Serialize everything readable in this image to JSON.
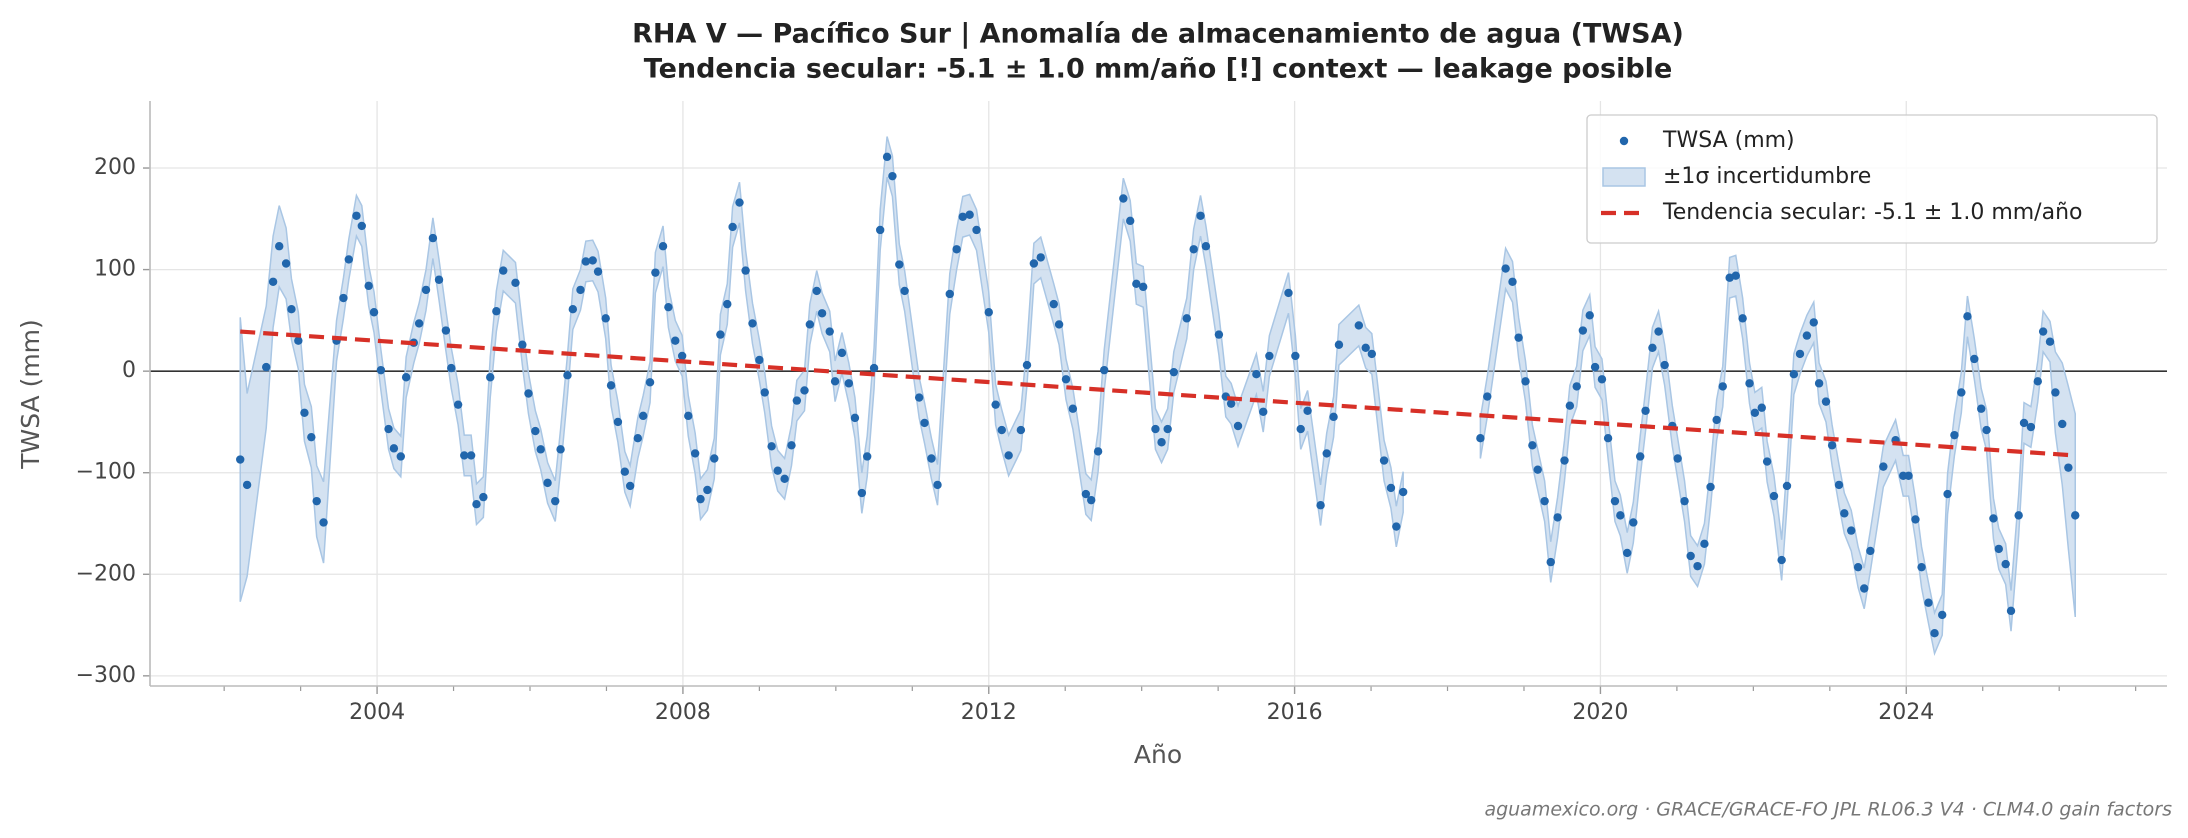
{
  "chart_data": {
    "type": "scatter",
    "title": "RHA V — Pacífico Sur  |  Anomalía de almacenamiento de agua (TWSA)",
    "subtitle": "Tendencia secular: -5.1 ± 1.0 mm/año  [!] context — leakage posible",
    "xlabel": "Año",
    "ylabel": "TWSA (mm)",
    "source": "aguamexico.org · GRACE/GRACE-FO JPL RL06.3 V4 · CLM4.0 gain factors",
    "xlim": [
      2001.03,
      2027.41
    ],
    "ylim": [
      -310,
      266
    ],
    "xticks": [
      2004,
      2008,
      2012,
      2016,
      2020,
      2024
    ],
    "xminorticks": [
      2002,
      2003,
      2005,
      2006,
      2007,
      2009,
      2010,
      2011,
      2013,
      2014,
      2015,
      2017,
      2018,
      2019,
      2021,
      2022,
      2023,
      2025,
      2026,
      2027
    ],
    "yticks": [
      {
        "value": -300,
        "label": "−300"
      },
      {
        "value": -200,
        "label": "−200"
      },
      {
        "value": -100,
        "label": "−100"
      },
      0,
      100,
      200
    ],
    "grid": true,
    "zero_line": 0,
    "legend": "upper right",
    "series": [
      {
        "name": "TWSA (mm)",
        "type": "scatter",
        "color": "#2166ac",
        "band_name": "±1σ incertidumbre",
        "band_color": "#a9c6e4",
        "x": [
          2002.21,
          2002.3,
          2002.55,
          2002.64,
          2002.72,
          2002.81,
          2002.88,
          2002.97,
          2003.05,
          2003.14,
          2003.21,
          2003.3,
          2003.47,
          2003.56,
          2003.63,
          2003.73,
          2003.8,
          2003.89,
          2003.96,
          2004.05,
          2004.15,
          2004.22,
          2004.31,
          2004.38,
          2004.48,
          2004.55,
          2004.64,
          2004.73,
          2004.81,
          2004.9,
          2004.97,
          2005.06,
          2005.14,
          2005.23,
          2005.3,
          2005.39,
          2005.48,
          2005.56,
          2005.65,
          2005.81,
          2005.9,
          2005.98,
          2006.07,
          2006.14,
          2006.23,
          2006.33,
          2006.4,
          2006.49,
          2006.56,
          2006.66,
          2006.73,
          2006.82,
          2006.89,
          2006.99,
          2007.06,
          2007.15,
          2007.24,
          2007.31,
          2007.41,
          2007.48,
          2007.57,
          2007.64,
          2007.74,
          2007.81,
          2007.9,
          2007.99,
          2008.07,
          2008.16,
          2008.23,
          2008.32,
          2008.41,
          2008.49,
          2008.58,
          2008.65,
          2008.74,
          2008.82,
          2008.91,
          2009.0,
          2009.07,
          2009.16,
          2009.24,
          2009.33,
          2009.42,
          2009.49,
          2009.59,
          2009.66,
          2009.75,
          2009.82,
          2009.92,
          2009.99,
          2010.08,
          2010.17,
          2010.25,
          2010.34,
          2010.41,
          2010.5,
          2010.58,
          2010.67,
          2010.74,
          2010.83,
          2010.9,
          2011.09,
          2011.16,
          2011.25,
          2011.33,
          2011.49,
          2011.58,
          2011.66,
          2011.75,
          2011.84,
          2012.0,
          2012.09,
          2012.17,
          2012.26,
          2012.42,
          2012.5,
          2012.59,
          2012.68,
          2012.85,
          2012.92,
          2013.01,
          2013.1,
          2013.27,
          2013.34,
          2013.43,
          2013.51,
          2013.76,
          2013.85,
          2013.93,
          2014.02,
          2014.18,
          2014.26,
          2014.34,
          2014.42,
          2014.59,
          2014.68,
          2014.77,
          2014.84,
          2015.01,
          2015.1,
          2015.17,
          2015.26,
          2015.5,
          2015.59,
          2015.67,
          2015.92,
          2016.01,
          2016.08,
          2016.17,
          2016.34,
          2016.42,
          2016.51,
          2016.58,
          2016.84,
          2016.93,
          2017.01,
          2017.17,
          2017.26,
          2017.33,
          2017.42,
          2017.9,
          2018.43,
          2018.52,
          2018.76,
          2018.85,
          2018.93,
          2019.02,
          2019.11,
          2019.18,
          2019.27,
          2019.35,
          2019.44,
          2019.53,
          2019.6,
          2019.69,
          2019.77,
          2019.86,
          2019.93,
          2020.02,
          2020.1,
          2020.19,
          2020.26,
          2020.35,
          2020.43,
          2020.52,
          2020.59,
          2020.68,
          2020.76,
          2020.84,
          2020.94,
          2021.01,
          2021.1,
          2021.18,
          2021.27,
          2021.36,
          2021.44,
          2021.52,
          2021.6,
          2021.69,
          2021.77,
          2021.86,
          2021.95,
          2022.02,
          2022.11,
          2022.18,
          2022.27,
          2022.37,
          2022.44,
          2022.53,
          2022.61,
          2022.7,
          2022.79,
          2022.86,
          2022.95,
          2023.03,
          2023.12,
          2023.19,
          2023.28,
          2023.37,
          2023.45,
          2023.53,
          2023.7,
          2023.86,
          2023.96,
          2024.03,
          2024.12,
          2024.2,
          2024.29,
          2024.37,
          2024.47,
          2024.54,
          2024.63,
          2024.72,
          2024.8,
          2024.89,
          2024.98,
          2025.05,
          2025.14,
          2025.21,
          2025.3,
          2025.37,
          2025.47,
          2025.54,
          2025.63,
          2025.72,
          2025.79,
          2025.88,
          2025.95,
          2026.04,
          2026.12,
          2026.21
        ],
        "values": [
          -87,
          -112,
          4,
          88,
          123,
          106,
          61,
          30,
          -41,
          -65,
          -128,
          -149,
          30,
          72,
          110,
          153,
          143,
          84,
          58,
          1,
          -57,
          -76,
          -84,
          -6,
          28,
          47,
          80,
          131,
          90,
          40,
          3,
          -33,
          -83,
          -83,
          -131,
          -124,
          -6,
          59,
          99,
          87,
          26,
          -22,
          -59,
          -77,
          -110,
          -128,
          -77,
          -4,
          61,
          80,
          108,
          109,
          98,
          52,
          -14,
          -50,
          -99,
          -113,
          -66,
          -44,
          -11,
          97,
          123,
          63,
          30,
          15,
          -44,
          -81,
          -126,
          -117,
          -86,
          36,
          66,
          142,
          166,
          99,
          47,
          11,
          -21,
          -74,
          -98,
          -106,
          -73,
          -29,
          -19,
          46,
          79,
          57,
          39,
          -10,
          18,
          -12,
          -46,
          -120,
          -84,
          3,
          139,
          211,
          192,
          105,
          79,
          -26,
          -51,
          -86,
          -112,
          76,
          120,
          152,
          154,
          139,
          58,
          -33,
          -58,
          -83,
          -58,
          6,
          106,
          112,
          66,
          46,
          -8,
          -37,
          -121,
          -127,
          -79,
          1,
          170,
          148,
          86,
          83,
          -57,
          -70,
          -57,
          -1,
          52,
          120,
          153,
          123,
          36,
          -25,
          -32,
          -54,
          -3,
          -40,
          15,
          77,
          15,
          -57,
          -39,
          -132,
          -81,
          -45,
          26,
          45,
          23,
          17,
          -88,
          -115,
          -153,
          -119,
          null,
          -66,
          -25,
          101,
          88,
          33,
          -10,
          -73,
          -97,
          -128,
          -188,
          -144,
          -88,
          -34,
          -15,
          40,
          55,
          4,
          -8,
          -66,
          -128,
          -142,
          -179,
          -149,
          -84,
          -39,
          23,
          39,
          6,
          -54,
          -86,
          -128,
          -182,
          -192,
          -170,
          -114,
          -48,
          -15,
          92,
          94,
          52,
          -12,
          -41,
          -36,
          -89,
          -123,
          -186,
          -113,
          -3,
          17,
          35,
          48,
          -12,
          -30,
          -73,
          -112,
          -140,
          -157,
          -193,
          -214,
          -177,
          -94,
          -68,
          -103,
          -103,
          -146,
          -193,
          -228,
          -258,
          -240,
          -121,
          -63,
          -21,
          54,
          12,
          -37,
          -58,
          -145,
          -175,
          -190,
          -236,
          -142,
          -51,
          -55,
          -10,
          39,
          29,
          -21,
          -52,
          -95,
          -142
        ],
        "sigma": [
          140,
          90,
          60,
          45,
          40,
          35,
          30,
          28,
          28,
          30,
          35,
          40,
          20,
          20,
          20,
          20,
          20,
          20,
          20,
          20,
          20,
          20,
          20,
          20,
          20,
          20,
          20,
          20,
          20,
          20,
          20,
          20,
          20,
          20,
          20,
          20,
          20,
          20,
          20,
          20,
          20,
          20,
          20,
          20,
          20,
          20,
          20,
          20,
          20,
          20,
          20,
          20,
          20,
          20,
          20,
          20,
          20,
          20,
          20,
          20,
          20,
          20,
          20,
          20,
          20,
          20,
          20,
          20,
          20,
          20,
          20,
          20,
          20,
          20,
          20,
          20,
          20,
          20,
          20,
          20,
          20,
          20,
          20,
          20,
          20,
          20,
          20,
          20,
          20,
          20,
          20,
          20,
          20,
          20,
          20,
          20,
          20,
          20,
          20,
          20,
          20,
          20,
          20,
          20,
          20,
          20,
          20,
          20,
          20,
          20,
          20,
          20,
          20,
          20,
          20,
          20,
          20,
          20,
          20,
          20,
          20,
          20,
          20,
          20,
          20,
          20,
          20,
          20,
          20,
          20,
          20,
          20,
          20,
          20,
          20,
          20,
          20,
          20,
          20,
          20,
          20,
          20,
          20,
          20,
          20,
          20,
          20,
          20,
          20,
          20,
          20,
          20,
          20,
          20,
          20,
          20,
          20,
          20,
          20,
          20,
          null,
          20,
          20,
          20,
          20,
          20,
          20,
          20,
          20,
          20,
          20,
          20,
          20,
          20,
          20,
          20,
          20,
          20,
          20,
          20,
          20,
          20,
          20,
          20,
          20,
          20,
          20,
          20,
          20,
          20,
          20,
          20,
          20,
          20,
          20,
          20,
          20,
          20,
          20,
          20,
          20,
          20,
          20,
          20,
          20,
          20,
          20,
          20,
          20,
          20,
          20,
          20,
          20,
          20,
          20,
          20,
          20,
          20,
          20,
          20,
          20,
          20,
          20,
          20,
          20,
          20,
          20,
          20,
          20,
          20,
          20,
          20,
          20,
          20,
          20,
          20,
          20,
          20,
          20,
          20,
          20,
          20,
          20,
          20,
          20,
          20,
          20,
          40,
          60,
          80,
          100
        ]
      },
      {
        "name": "Tendencia secular: -5.1 ± 1.0 mm/año",
        "type": "line",
        "color": "#d73027",
        "dashed": true,
        "x": [
          2002.21,
          2026.21
        ],
        "values": [
          39,
          -83
        ]
      }
    ]
  }
}
